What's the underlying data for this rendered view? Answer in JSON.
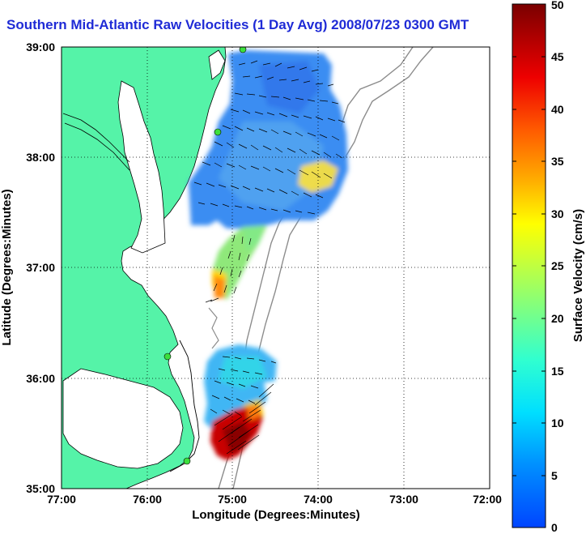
{
  "title": "Southern Mid-Atlantic Raw Velocities (1 Day Avg) 2008/07/23 0300 GMT",
  "map": {
    "x_ticks": [
      "77:00",
      "76:00",
      "75:00",
      "74:00",
      "73:00",
      "72:00"
    ],
    "y_ticks": [
      "39:00",
      "38:00",
      "37:00",
      "36:00",
      "35:00"
    ],
    "xlabel": "Longitude (Degrees:Minutes)",
    "ylabel": "Latitude (Degrees:Minutes)",
    "lon_range": [
      -77,
      -72
    ],
    "lat_range": [
      35,
      39
    ],
    "grid": "dotted",
    "land_color": "#55f3a8",
    "water_color": "#ffffff",
    "station_color": "#3ddf3d",
    "vector_color": "#000000"
  },
  "colorbar": {
    "label": "Surface Velocity (cm/s)",
    "ticks": [
      "0",
      "5",
      "10",
      "15",
      "20",
      "25",
      "30",
      "35",
      "40",
      "45",
      "50"
    ],
    "range": [
      0,
      50
    ],
    "colormap": "jet"
  }
}
